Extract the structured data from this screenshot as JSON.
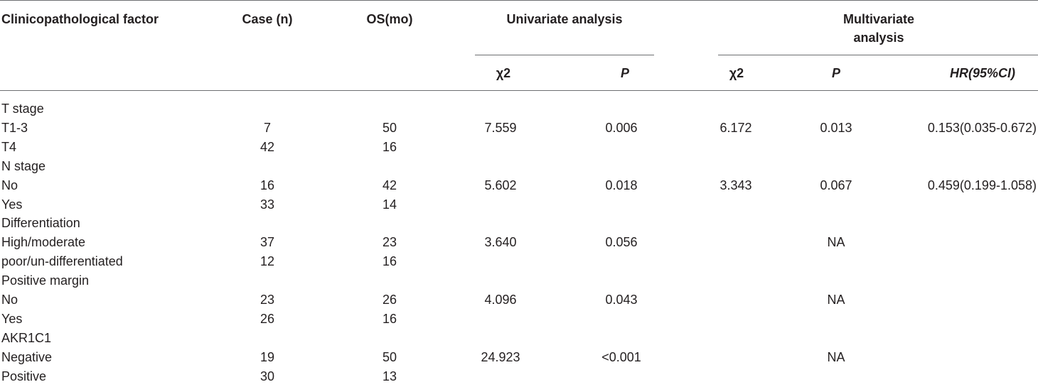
{
  "headers": {
    "factor": "Clinicopathological factor",
    "cases": "Case (n)",
    "os": "OS(mo)",
    "univariate": "Univariate analysis",
    "multivariate_line1": "Multivariate",
    "multivariate_line2": "analysis",
    "chi2_uni": "χ2",
    "p_uni": "P",
    "chi2_multi": "χ2",
    "p_multi": "P",
    "hr": "HR(95%CI)"
  },
  "rows": [
    {
      "factor": "T stage",
      "cases": "",
      "os": "",
      "chi2_uni": "",
      "p_uni": "",
      "chi2_multi": "",
      "p_multi": "",
      "hr": ""
    },
    {
      "factor": "T1-3",
      "cases": "7",
      "os": "50",
      "chi2_uni": "7.559",
      "p_uni": "0.006",
      "chi2_multi": "6.172",
      "p_multi": "0.013",
      "hr": "0.153(0.035-0.672)"
    },
    {
      "factor": "T4",
      "cases": "42",
      "os": "16",
      "chi2_uni": "",
      "p_uni": "",
      "chi2_multi": "",
      "p_multi": "",
      "hr": ""
    },
    {
      "factor": "N stage",
      "cases": "",
      "os": "",
      "chi2_uni": "",
      "p_uni": "",
      "chi2_multi": "",
      "p_multi": "",
      "hr": ""
    },
    {
      "factor": "No",
      "cases": "16",
      "os": "42",
      "chi2_uni": "5.602",
      "p_uni": "0.018",
      "chi2_multi": "3.343",
      "p_multi": "0.067",
      "hr": "0.459(0.199-1.058)"
    },
    {
      "factor": "Yes",
      "cases": "33",
      "os": "14",
      "chi2_uni": "",
      "p_uni": "",
      "chi2_multi": "",
      "p_multi": "",
      "hr": ""
    },
    {
      "factor": "Differentiation",
      "cases": "",
      "os": "",
      "chi2_uni": "",
      "p_uni": "",
      "chi2_multi": "",
      "p_multi": "",
      "hr": ""
    },
    {
      "factor": "High/moderate",
      "cases": "37",
      "os": "23",
      "chi2_uni": "3.640",
      "p_uni": "0.056",
      "chi2_multi": "",
      "p_multi": "NA",
      "hr": ""
    },
    {
      "factor": "poor/un-differentiated",
      "cases": "12",
      "os": "16",
      "chi2_uni": "",
      "p_uni": "",
      "chi2_multi": "",
      "p_multi": "",
      "hr": ""
    },
    {
      "factor": "Positive margin",
      "cases": "",
      "os": "",
      "chi2_uni": "",
      "p_uni": "",
      "chi2_multi": "",
      "p_multi": "",
      "hr": ""
    },
    {
      "factor": "No",
      "cases": "23",
      "os": "26",
      "chi2_uni": "4.096",
      "p_uni": "0.043",
      "chi2_multi": "",
      "p_multi": "NA",
      "hr": ""
    },
    {
      "factor": "Yes",
      "cases": "26",
      "os": "16",
      "chi2_uni": "",
      "p_uni": "",
      "chi2_multi": "",
      "p_multi": "",
      "hr": ""
    },
    {
      "factor": "AKR1C1",
      "cases": "",
      "os": "",
      "chi2_uni": "",
      "p_uni": "",
      "chi2_multi": "",
      "p_multi": "",
      "hr": ""
    },
    {
      "factor": "Negative",
      "cases": "19",
      "os": "50",
      "chi2_uni": "24.923",
      "p_uni": "<0.001",
      "chi2_multi": "",
      "p_multi": "NA",
      "hr": ""
    },
    {
      "factor": "Positive",
      "cases": "30",
      "os": "13",
      "chi2_uni": "",
      "p_uni": "",
      "chi2_multi": "",
      "p_multi": "",
      "hr": ""
    }
  ]
}
